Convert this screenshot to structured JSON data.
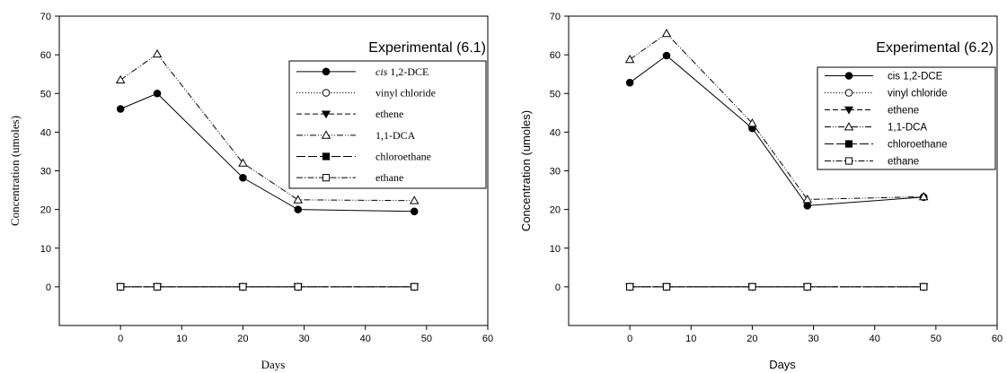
{
  "chart_data": [
    {
      "type": "line",
      "title": "Experimental (6.1)",
      "xlabel": "Days",
      "ylabel": "Concentration (umoles)",
      "xlim": [
        -10,
        60
      ],
      "ylim": [
        -10,
        70
      ],
      "xticks": [
        0,
        10,
        20,
        30,
        40,
        50,
        60
      ],
      "yticks": [
        0,
        10,
        20,
        30,
        40,
        50,
        60,
        70
      ],
      "x": [
        0,
        6,
        20,
        29,
        48
      ],
      "legend_position": "top-right",
      "label_font": "serif",
      "series": [
        {
          "name": "cis 1,2-DCE",
          "name_prefix": "cis",
          "name_rest": " 1,2-DCE",
          "marker": "filled-circle",
          "dash": "solid",
          "values": [
            46.0,
            50.0,
            28.2,
            20.0,
            19.5
          ]
        },
        {
          "name": "vinyl chloride",
          "marker": "open-circle",
          "dash": "dotted",
          "values": [
            0,
            0,
            0,
            0,
            0
          ]
        },
        {
          "name": "ethene",
          "marker": "filled-triangle-down",
          "dash": "dashed",
          "values": [
            0,
            0,
            0,
            0,
            0
          ]
        },
        {
          "name": "1,1-DCA",
          "marker": "open-triangle-up",
          "dash": "dash-dot-dot",
          "values": [
            53.5,
            60.2,
            32.0,
            22.5,
            22.3
          ]
        },
        {
          "name": "chloroethane",
          "marker": "filled-square",
          "dash": "long-dash",
          "values": [
            0,
            0,
            0,
            0,
            0
          ]
        },
        {
          "name": "ethane",
          "marker": "open-square",
          "dash": "dash-dot",
          "values": [
            0,
            0,
            0,
            0,
            0
          ]
        }
      ]
    },
    {
      "type": "line",
      "title": "Experimental (6.2)",
      "xlabel": "Days",
      "ylabel": "Concentration (umoles)",
      "xlim": [
        -10,
        60
      ],
      "ylim": [
        -10,
        70
      ],
      "xticks": [
        0,
        10,
        20,
        30,
        40,
        50,
        60
      ],
      "yticks": [
        0,
        10,
        20,
        30,
        40,
        50,
        60,
        70
      ],
      "x": [
        0,
        6,
        20,
        29,
        48
      ],
      "legend_position": "top-right",
      "label_font": "sans",
      "series": [
        {
          "name": "cis 1,2-DCE",
          "marker": "filled-circle",
          "dash": "solid",
          "values": [
            52.8,
            59.8,
            41.0,
            21.0,
            23.2
          ]
        },
        {
          "name": "vinyl chloride",
          "marker": "open-circle",
          "dash": "dotted",
          "values": [
            0,
            0,
            0,
            0,
            0
          ]
        },
        {
          "name": "ethene",
          "marker": "filled-triangle-down",
          "dash": "dashed",
          "values": [
            0,
            0,
            0,
            0,
            0
          ]
        },
        {
          "name": "1,1-DCA",
          "marker": "open-triangle-up",
          "dash": "dash-dot-dot",
          "values": [
            58.8,
            65.5,
            42.3,
            22.6,
            23.3
          ]
        },
        {
          "name": "chloroethane",
          "marker": "filled-square",
          "dash": "long-dash",
          "values": [
            0,
            0,
            0,
            0,
            0
          ]
        },
        {
          "name": "ethane",
          "marker": "open-square",
          "dash": "dash-dot",
          "values": [
            0,
            0,
            0,
            0,
            0
          ]
        }
      ]
    }
  ]
}
